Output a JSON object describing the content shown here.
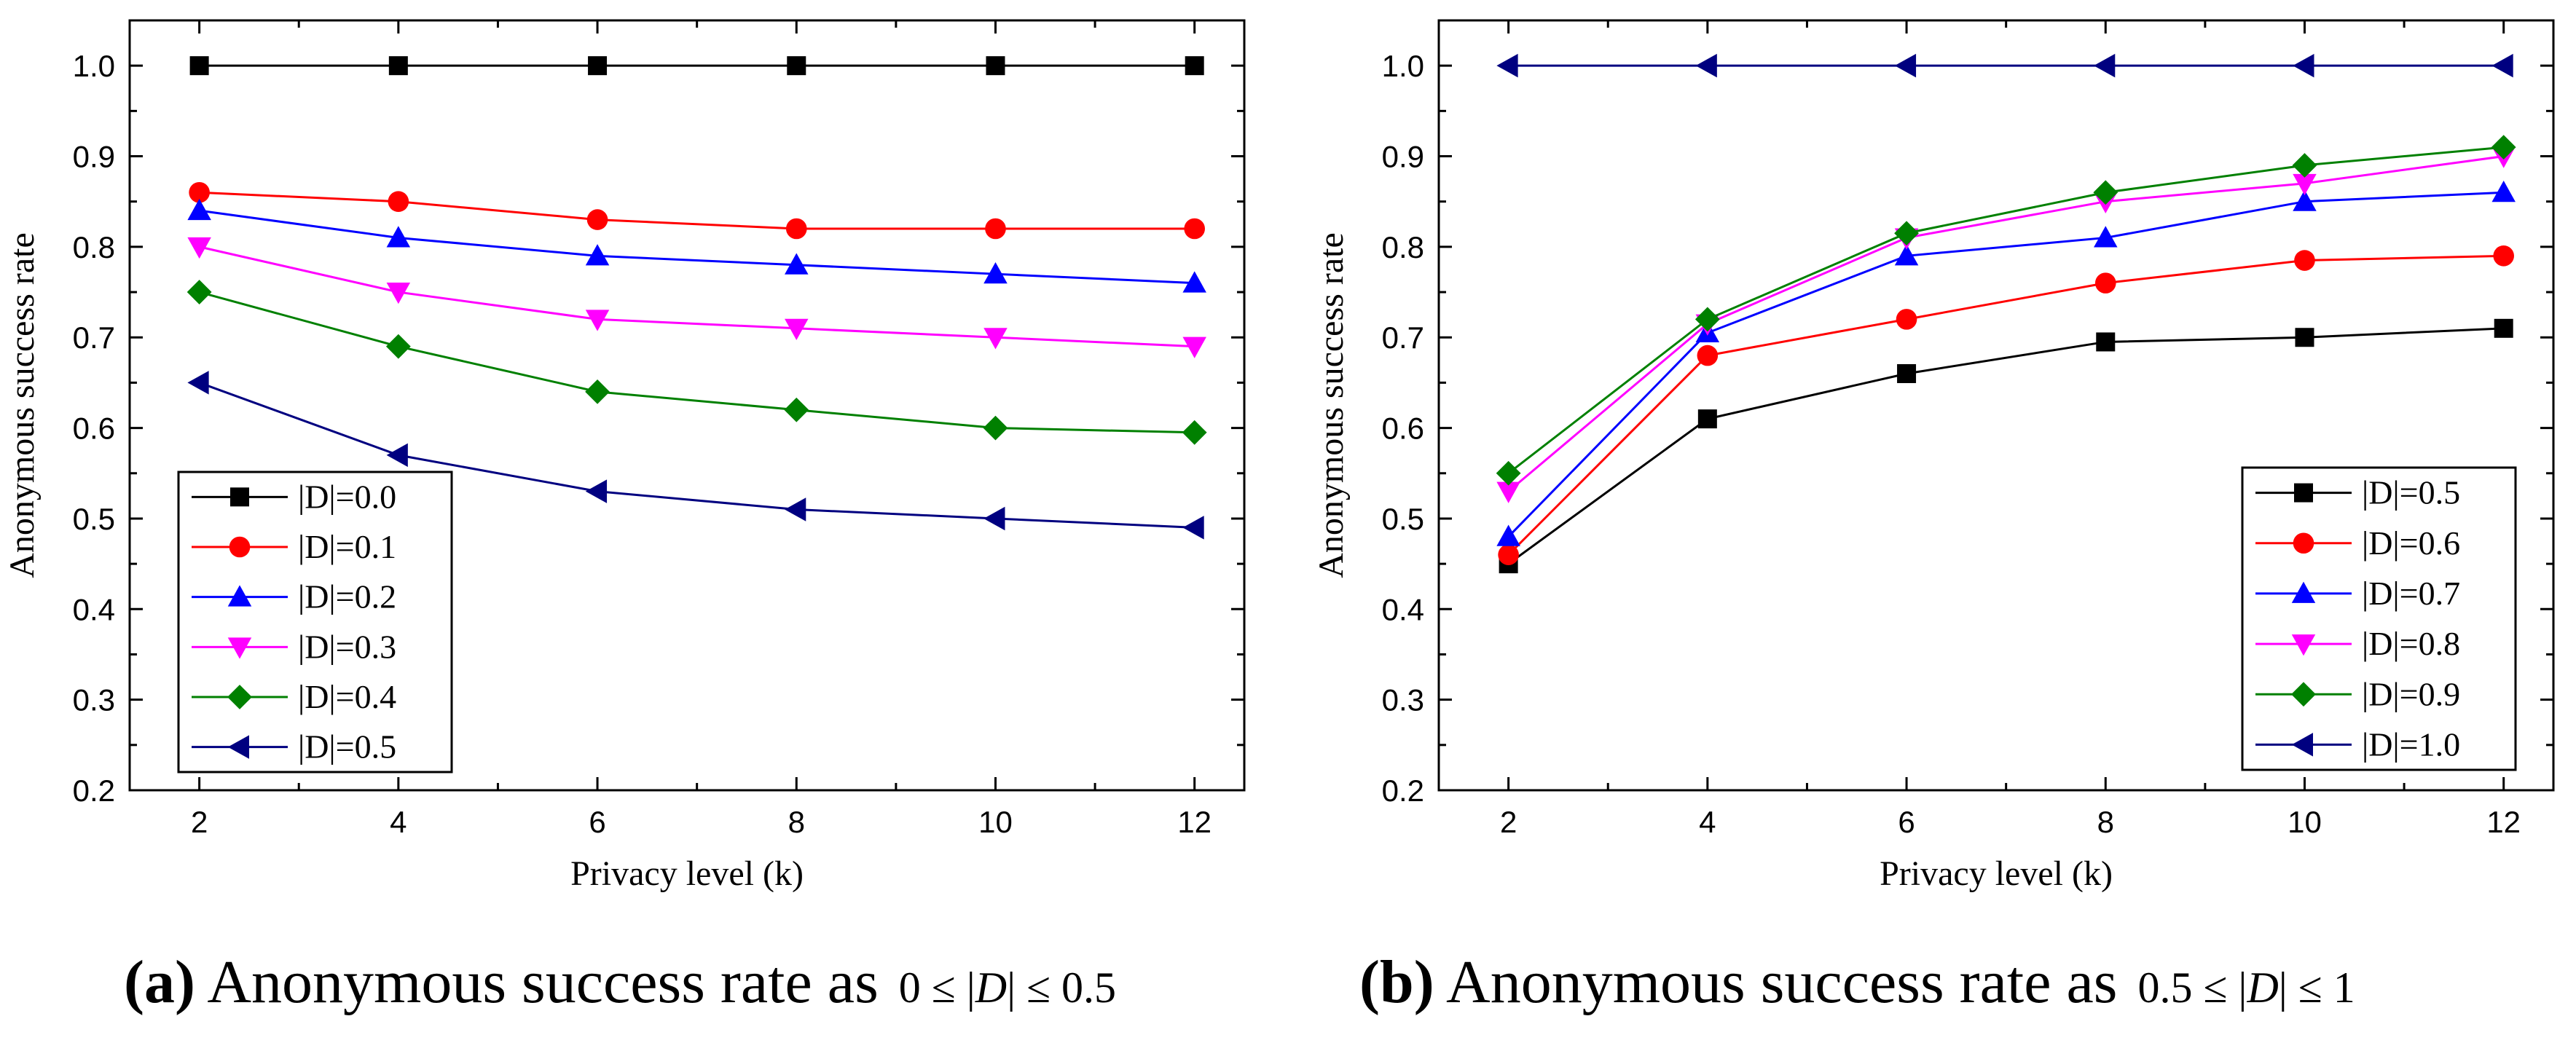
{
  "chart_data": [
    {
      "type": "line",
      "xlabel": "Privacy level (k)",
      "ylabel": "Anonymous success rate",
      "x": [
        2,
        4,
        6,
        8,
        10,
        12
      ],
      "xlim": [
        1.3,
        12.5
      ],
      "ylim": [
        0.2,
        1.05
      ],
      "xticks": [
        2,
        4,
        6,
        8,
        10,
        12
      ],
      "yticks": [
        0.2,
        0.3,
        0.4,
        0.5,
        0.6,
        0.7,
        0.8,
        0.9,
        1.0
      ],
      "legend_position": "bottom-left",
      "grid": false,
      "series": [
        {
          "name": "|D|=0.0",
          "color": "#000000",
          "marker": "square",
          "values": [
            1.0,
            1.0,
            1.0,
            1.0,
            1.0,
            1.0
          ]
        },
        {
          "name": "|D|=0.1",
          "color": "#ff0000",
          "marker": "circle",
          "values": [
            0.86,
            0.85,
            0.83,
            0.82,
            0.82,
            0.82
          ]
        },
        {
          "name": "|D|=0.2",
          "color": "#0000ff",
          "marker": "triangle-up",
          "values": [
            0.84,
            0.81,
            0.79,
            0.78,
            0.77,
            0.76
          ]
        },
        {
          "name": "|D|=0.3",
          "color": "#ff00ff",
          "marker": "triangle-down",
          "values": [
            0.8,
            0.75,
            0.72,
            0.71,
            0.7,
            0.69
          ]
        },
        {
          "name": "|D|=0.4",
          "color": "#008000",
          "marker": "diamond",
          "values": [
            0.75,
            0.69,
            0.64,
            0.62,
            0.6,
            0.595
          ]
        },
        {
          "name": "|D|=0.5",
          "color": "#000080",
          "marker": "triangle-left",
          "values": [
            0.65,
            0.57,
            0.53,
            0.51,
            0.5,
            0.49
          ]
        }
      ]
    },
    {
      "type": "line",
      "xlabel": "Privacy level (k)",
      "ylabel": "Anonymous success rate",
      "x": [
        2,
        4,
        6,
        8,
        10,
        12
      ],
      "xlim": [
        1.3,
        12.5
      ],
      "ylim": [
        0.2,
        1.05
      ],
      "xticks": [
        2,
        4,
        6,
        8,
        10,
        12
      ],
      "yticks": [
        0.2,
        0.3,
        0.4,
        0.5,
        0.6,
        0.7,
        0.8,
        0.9,
        1.0
      ],
      "legend_position": "bottom-right",
      "grid": false,
      "series": [
        {
          "name": "|D|=0.5",
          "color": "#000000",
          "marker": "square",
          "values": [
            0.45,
            0.61,
            0.66,
            0.695,
            0.7,
            0.71
          ]
        },
        {
          "name": "|D|=0.6",
          "color": "#ff0000",
          "marker": "circle",
          "values": [
            0.46,
            0.68,
            0.72,
            0.76,
            0.785,
            0.79
          ]
        },
        {
          "name": "|D|=0.7",
          "color": "#0000ff",
          "marker": "triangle-up",
          "values": [
            0.48,
            0.705,
            0.79,
            0.81,
            0.85,
            0.86
          ]
        },
        {
          "name": "|D|=0.8",
          "color": "#ff00ff",
          "marker": "triangle-down",
          "values": [
            0.53,
            0.715,
            0.81,
            0.85,
            0.87,
            0.9
          ]
        },
        {
          "name": "|D|=0.9",
          "color": "#008000",
          "marker": "diamond",
          "values": [
            0.55,
            0.72,
            0.815,
            0.86,
            0.89,
            0.91
          ]
        },
        {
          "name": "|D|=1.0",
          "color": "#000080",
          "marker": "triangle-left",
          "values": [
            1.0,
            1.0,
            1.0,
            1.0,
            1.0,
            1.0
          ]
        }
      ]
    }
  ],
  "captions": [
    {
      "letter": "(a)",
      "text": " Anonymous success rate as",
      "math_left": "0 ≤ |",
      "math_var": "D",
      "math_right": "| ≤ 0.5"
    },
    {
      "letter": "(b)",
      "text": " Anonymous success rate as",
      "math_left": "0.5 ≤ |",
      "math_var": "D",
      "math_right": "| ≤ 1"
    }
  ]
}
